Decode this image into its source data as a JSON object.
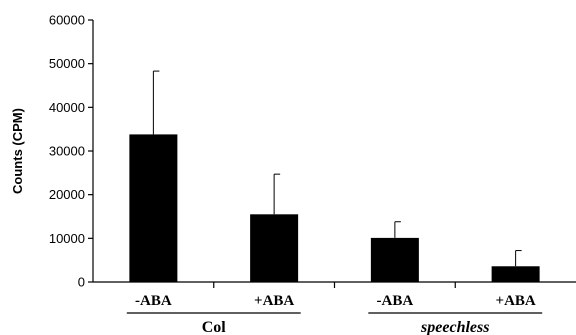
{
  "chart_data": {
    "type": "bar",
    "ylabel": "Counts (CPM)",
    "ylim": [
      0,
      60000
    ],
    "yticks": [
      0,
      10000,
      20000,
      30000,
      40000,
      50000,
      60000
    ],
    "ytick_labels": [
      "0",
      "10000",
      "20000",
      "30000",
      "40000",
      "50000",
      "60000"
    ],
    "categories": [
      "-ABA",
      "+ABA",
      "-ABA",
      "+ABA"
    ],
    "values": [
      33800,
      15500,
      10100,
      3600
    ],
    "errors": [
      14500,
      9200,
      3700,
      3600
    ],
    "groups": [
      {
        "label": "Col",
        "italic": false,
        "members": [
          0,
          1
        ]
      },
      {
        "label": "speechless",
        "italic": true,
        "members": [
          2,
          3
        ]
      }
    ],
    "bar_color": "#000000",
    "grid": false,
    "legend": "none"
  }
}
